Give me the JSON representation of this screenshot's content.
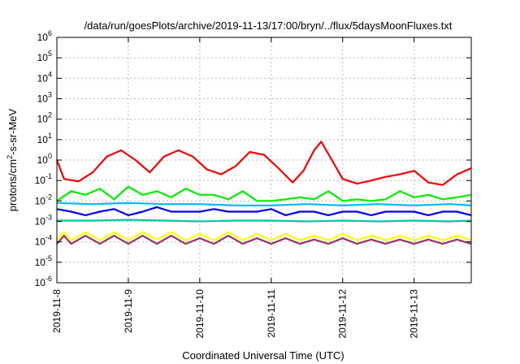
{
  "chart_data": {
    "type": "line",
    "title": "/data/run/goesPlots/archive/2019-11-13/17:00/bryn/../flux/5daysMoonFluxes.txt",
    "xlabel": "Coordinated Universal Time (UTC)",
    "ylabel_parts": [
      "protons/cm",
      "2",
      "-s-sr-MeV"
    ],
    "x_range": [
      0,
      5.8
    ],
    "x_ticks": [
      {
        "x": 0,
        "label": "2019-11-8"
      },
      {
        "x": 1,
        "label": "2019-11-9"
      },
      {
        "x": 2,
        "label": "2019-11-10"
      },
      {
        "x": 3,
        "label": "2019-11-11"
      },
      {
        "x": 4,
        "label": "2019-11-12"
      },
      {
        "x": 5,
        "label": "2019-11-13"
      }
    ],
    "y_scale": "log",
    "y_range_exp": [
      -6,
      6
    ],
    "y_ticks": [
      {
        "exp": -6,
        "base": "10",
        "sup": "-6"
      },
      {
        "exp": -5,
        "base": "10",
        "sup": "-5"
      },
      {
        "exp": -4,
        "base": "10",
        "sup": "-4"
      },
      {
        "exp": -3,
        "base": "10",
        "sup": "-3"
      },
      {
        "exp": -2,
        "base": "10",
        "sup": "-2"
      },
      {
        "exp": -1,
        "base": "10",
        "sup": "-1"
      },
      {
        "exp": 0,
        "base": "10",
        "sup": "0"
      },
      {
        "exp": 1,
        "base": "10",
        "sup": "1"
      },
      {
        "exp": 2,
        "base": "10",
        "sup": "2"
      },
      {
        "exp": 3,
        "base": "10",
        "sup": "3"
      },
      {
        "exp": 4,
        "base": "10",
        "sup": "4"
      },
      {
        "exp": 5,
        "base": "10",
        "sup": "5"
      },
      {
        "exp": 6,
        "base": "10",
        "sup": "6"
      }
    ],
    "grid": true,
    "series": [
      {
        "color": "#ff0000",
        "x": [
          0,
          0.1,
          0.3,
          0.5,
          0.7,
          0.9,
          1.1,
          1.3,
          1.5,
          1.7,
          1.9,
          2.1,
          2.3,
          2.5,
          2.7,
          2.9,
          3.1,
          3.3,
          3.45,
          3.6,
          3.7,
          3.85,
          4.0,
          4.2,
          4.4,
          4.6,
          4.8,
          5.0,
          5.2,
          5.4,
          5.6,
          5.8
        ],
        "y": [
          1.0,
          0.12,
          0.09,
          0.25,
          1.5,
          3.0,
          1.0,
          0.25,
          1.5,
          3.0,
          1.5,
          0.35,
          0.2,
          0.5,
          2.5,
          1.8,
          0.4,
          0.08,
          0.3,
          3.0,
          8.0,
          1.0,
          0.12,
          0.07,
          0.1,
          0.15,
          0.2,
          0.3,
          0.08,
          0.06,
          0.2,
          0.4
        ]
      },
      {
        "color": "#00ee00",
        "x": [
          0,
          0.2,
          0.4,
          0.6,
          0.8,
          1.0,
          1.2,
          1.4,
          1.6,
          1.8,
          2.0,
          2.2,
          2.4,
          2.6,
          2.8,
          3.0,
          3.2,
          3.4,
          3.6,
          3.8,
          4.0,
          4.2,
          4.4,
          4.6,
          4.8,
          5.0,
          5.2,
          5.4,
          5.6,
          5.8
        ],
        "y": [
          0.01,
          0.03,
          0.02,
          0.04,
          0.012,
          0.05,
          0.02,
          0.03,
          0.015,
          0.04,
          0.02,
          0.02,
          0.012,
          0.03,
          0.01,
          0.01,
          0.012,
          0.015,
          0.012,
          0.03,
          0.01,
          0.012,
          0.01,
          0.012,
          0.03,
          0.015,
          0.02,
          0.012,
          0.015,
          0.02
        ]
      },
      {
        "color": "#00bbff",
        "x": [
          0,
          0.5,
          1.0,
          1.5,
          2.0,
          2.5,
          3.0,
          3.5,
          4.0,
          4.5,
          5.0,
          5.5,
          5.8
        ],
        "y": [
          0.008,
          0.007,
          0.008,
          0.007,
          0.007,
          0.006,
          0.006,
          0.007,
          0.006,
          0.007,
          0.006,
          0.007,
          0.006
        ]
      },
      {
        "color": "#0000ee",
        "x": [
          0,
          0.2,
          0.4,
          0.6,
          0.8,
          1.0,
          1.2,
          1.4,
          1.6,
          1.8,
          2.0,
          2.2,
          2.4,
          2.6,
          2.8,
          3.0,
          3.2,
          3.4,
          3.6,
          3.8,
          4.0,
          4.2,
          4.4,
          4.6,
          4.8,
          5.0,
          5.2,
          5.4,
          5.6,
          5.8
        ],
        "y": [
          0.004,
          0.003,
          0.002,
          0.003,
          0.004,
          0.002,
          0.003,
          0.005,
          0.003,
          0.003,
          0.003,
          0.004,
          0.003,
          0.003,
          0.003,
          0.004,
          0.002,
          0.003,
          0.003,
          0.002,
          0.003,
          0.003,
          0.002,
          0.003,
          0.003,
          0.003,
          0.002,
          0.003,
          0.003,
          0.002
        ]
      },
      {
        "color": "#00c8a0",
        "x": [
          0,
          0.5,
          1.0,
          1.5,
          2.0,
          2.5,
          3.0,
          3.5,
          4.0,
          4.5,
          5.0,
          5.5,
          5.8
        ],
        "y": [
          0.0011,
          0.0011,
          0.0012,
          0.0011,
          0.001,
          0.0011,
          0.0011,
          0.001,
          0.0011,
          0.001,
          0.0011,
          0.001,
          0.0011
        ]
      },
      {
        "color": "#ffff00",
        "x": [
          0,
          0.1,
          0.2,
          0.4,
          0.6,
          0.8,
          1.0,
          1.2,
          1.4,
          1.6,
          1.8,
          2.0,
          2.2,
          2.4,
          2.6,
          2.8,
          3.0,
          3.2,
          3.4,
          3.6,
          3.8,
          4.0,
          4.2,
          4.4,
          4.6,
          4.8,
          5.0,
          5.2,
          5.4,
          5.6,
          5.8
        ],
        "y": [
          0.00012,
          0.0003,
          0.00012,
          0.0003,
          0.00012,
          0.0003,
          0.00012,
          0.0003,
          0.00013,
          0.0003,
          0.00012,
          0.00025,
          0.00012,
          0.0003,
          0.00012,
          0.00025,
          0.00012,
          0.00025,
          0.00012,
          0.0002,
          0.00012,
          0.00025,
          0.00012,
          0.0002,
          0.00012,
          0.0002,
          0.00012,
          0.0002,
          0.00012,
          0.0002,
          0.00012
        ]
      },
      {
        "color": "#993366",
        "x": [
          0,
          0.1,
          0.2,
          0.4,
          0.6,
          0.8,
          1.0,
          1.2,
          1.4,
          1.6,
          1.8,
          2.0,
          2.2,
          2.4,
          2.6,
          2.8,
          3.0,
          3.2,
          3.4,
          3.6,
          3.8,
          4.0,
          4.2,
          4.4,
          4.6,
          4.8,
          5.0,
          5.2,
          5.4,
          5.6,
          5.8
        ],
        "y": [
          8e-05,
          0.0002,
          8e-05,
          0.0002,
          8e-05,
          0.0002,
          8e-05,
          0.0002,
          8e-05,
          0.0002,
          8e-05,
          0.00015,
          8e-05,
          0.0002,
          8e-05,
          0.00015,
          8e-05,
          0.00015,
          8e-05,
          0.00013,
          8e-05,
          0.00015,
          8e-05,
          0.00013,
          8e-05,
          0.00013,
          8e-05,
          0.00013,
          8e-05,
          0.00013,
          8e-05
        ]
      }
    ]
  }
}
